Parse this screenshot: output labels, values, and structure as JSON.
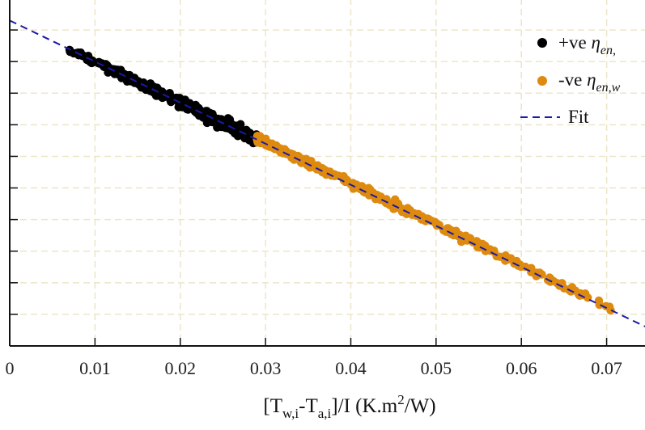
{
  "chart_data": {
    "type": "scatter",
    "x_ticks": [
      "0",
      "0.01",
      "0.02",
      "0.03",
      "0.04",
      "0.05",
      "0.06",
      "0.07"
    ],
    "xlim": [
      0,
      0.0745
    ],
    "ylim": [
      0.5,
      1.05
    ],
    "grid": true,
    "legend_position": "top-right",
    "xlabel": {
      "prefix": "[T",
      "sub1": "w,i",
      "mid": "-T",
      "sub2": "a,i",
      "mid2": "]/I (K.m",
      "sup": "2",
      "suffix": "/W)"
    },
    "legend": [
      {
        "prefix": "+ve ",
        "symbol": "η",
        "sub": "en,"
      },
      {
        "prefix": "-ve ",
        "symbol": "η",
        "sub": "en,w"
      },
      {
        "prefix": "",
        "symbol": "Fit",
        "sub": ""
      }
    ],
    "series": [
      {
        "marker": "circle",
        "x_range": [
          0.007,
          0.029
        ],
        "points_sampled": [
          [
            0.007,
            0.97
          ],
          [
            0.01,
            0.95
          ],
          [
            0.013,
            0.93
          ],
          [
            0.016,
            0.905
          ],
          [
            0.019,
            0.885
          ],
          [
            0.022,
            0.865
          ],
          [
            0.025,
            0.845
          ],
          [
            0.028,
            0.825
          ],
          [
            0.029,
            0.817
          ]
        ]
      },
      {
        "marker": "circle",
        "x_range": [
          0.029,
          0.0705
        ],
        "points_sampled": [
          [
            0.029,
            0.817
          ],
          [
            0.033,
            0.79
          ],
          [
            0.037,
            0.765
          ],
          [
            0.041,
            0.74
          ],
          [
            0.045,
            0.71
          ],
          [
            0.049,
            0.685
          ],
          [
            0.053,
            0.66
          ],
          [
            0.057,
            0.635
          ],
          [
            0.061,
            0.61
          ],
          [
            0.065,
            0.585
          ],
          [
            0.069,
            0.56
          ],
          [
            0.0705,
            0.552
          ]
        ]
      },
      {
        "line": "dashed",
        "intercept": 1.015,
        "slope": -6.5
      }
    ],
    "colors": {
      "positive": "#000000",
      "negative": "#de8a0f",
      "fit": "#1a1aa8",
      "grid": "#ece6c8",
      "axis": "#111111"
    }
  }
}
